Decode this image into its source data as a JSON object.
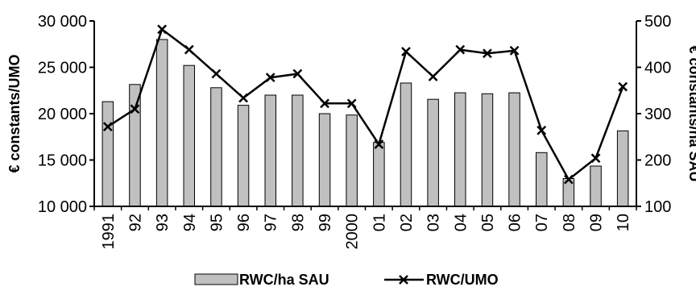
{
  "chart_data": {
    "type": "bar",
    "categories": [
      "1991",
      "92",
      "93",
      "94",
      "95",
      "96",
      "97",
      "98",
      "99",
      "2000",
      "01",
      "02",
      "03",
      "04",
      "05",
      "06",
      "07",
      "08",
      "09",
      "10"
    ],
    "series": [
      {
        "name": "RWC/ha SAU",
        "type": "bar",
        "axis": "right",
        "color": "#c0c0c0",
        "values": [
          326,
          363,
          460,
          404,
          356,
          318,
          340,
          340,
          300,
          297,
          238,
          366,
          331,
          345,
          343,
          345,
          216,
          160,
          187,
          263
        ]
      },
      {
        "name": "RWC/UMO",
        "type": "line",
        "axis": "left",
        "color": "#000000",
        "marker": "x",
        "values": [
          18600,
          20500,
          29100,
          26900,
          24300,
          21700,
          23900,
          24300,
          21100,
          21100,
          16700,
          26700,
          24000,
          26900,
          26500,
          26800,
          18200,
          12900,
          15200,
          22900
        ]
      }
    ],
    "ylabel_left": "€ constants/UMO",
    "ylabel_right": "€ constants/ha SAU",
    "ylim_left": [
      10000,
      30000
    ],
    "ylim_right": [
      100,
      500
    ],
    "yticks_left": [
      "10 000",
      "15 000",
      "20 000",
      "25 000",
      "30 000"
    ],
    "yticks_right": [
      "100",
      "200",
      "300",
      "400",
      "500"
    ],
    "grid": false,
    "legend_position": "bottom",
    "legend": [
      "RWC/ha SAU",
      "RWC/UMO"
    ]
  }
}
